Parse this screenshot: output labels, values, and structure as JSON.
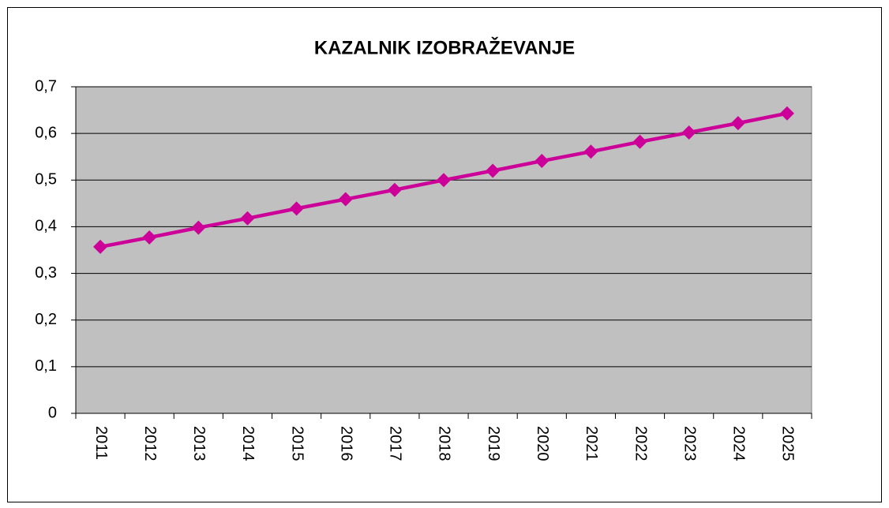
{
  "chart_data": {
    "type": "line",
    "title": "KAZALNIK IZOBRAŽEVANJE",
    "categories": [
      "2011",
      "2012",
      "2013",
      "2014",
      "2015",
      "2016",
      "2017",
      "2018",
      "2019",
      "2020",
      "2021",
      "2022",
      "2023",
      "2024",
      "2025"
    ],
    "values": [
      0.357,
      0.377,
      0.398,
      0.418,
      0.439,
      0.459,
      0.479,
      0.5,
      0.52,
      0.541,
      0.561,
      0.582,
      0.602,
      0.622,
      0.643
    ],
    "color": "#cc0099",
    "ylim": [
      0,
      0.7
    ],
    "yticks": [
      0,
      {
        "value": 0.1,
        "label": "0,1"
      },
      {
        "value": 0.2,
        "label": "0,2"
      },
      {
        "value": 0.3,
        "label": "0,3"
      },
      {
        "value": 0.4,
        "label": "0,4"
      },
      {
        "value": 0.5,
        "label": "0,5"
      },
      {
        "value": 0.6,
        "label": "0,6"
      },
      {
        "value": 0.7,
        "label": "0,7"
      }
    ],
    "grid": true
  }
}
